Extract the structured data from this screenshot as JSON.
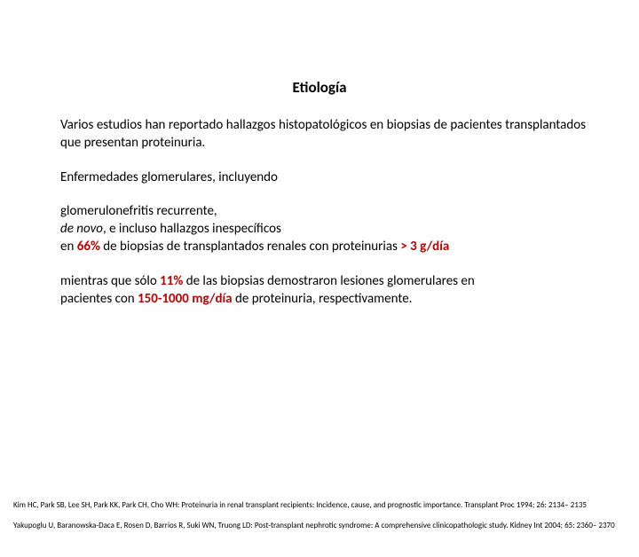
{
  "colors": {
    "background": "#ffffff",
    "text": "#000000",
    "highlight": "#c00000"
  },
  "typography": {
    "title_fontsize": 17,
    "body_fontsize": 15,
    "ref_fontsize": 9,
    "font_family": "Calibri"
  },
  "title": "Etiología",
  "p1": "Varios estudios han reportado hallazgos histopatológicos en biopsias de pacientes transplantados que presentan proteinuria.",
  "p2": "Enfermedades glomerulares, incluyendo",
  "p3": {
    "l1": "glomerulonefritis recurrente,",
    "l2_pre": "de novo",
    "l2_post": ", e incluso hallazgos inespecíficos",
    "l3_pre": "en ",
    "l3_pct": "66%",
    "l3_mid": " de biopsias de transplantados renales con proteinurias ",
    "l3_val": "> 3 g/día"
  },
  "p4": {
    "l1_pre": "mientras que sólo ",
    "l1_pct": "11%",
    "l1_post": " de las biopsias demostraron lesiones glomerulares en",
    "l2_pre": "pacientes con ",
    "l2_val": "150-1000 mg/día",
    "l2_post": " de proteinuria, respectivamente."
  },
  "ref1": "Kim HC, Park SB, Lee SH, Park KK, Park CH, Cho WH: Proteinuria in renal transplant recipients: Incidence, cause, and prognostic importance. Transplant Proc 1994; 26: 2134– 2135",
  "ref2": "Yakupoglu U, Baranowska-Daca E, Rosen D, Barrios R, Suki WN, Truong LD: Post-transplant nephrotic syndrome: A comprehensive clinicopathologic study. Kidney Int 2004; 65: 2360– 2370"
}
